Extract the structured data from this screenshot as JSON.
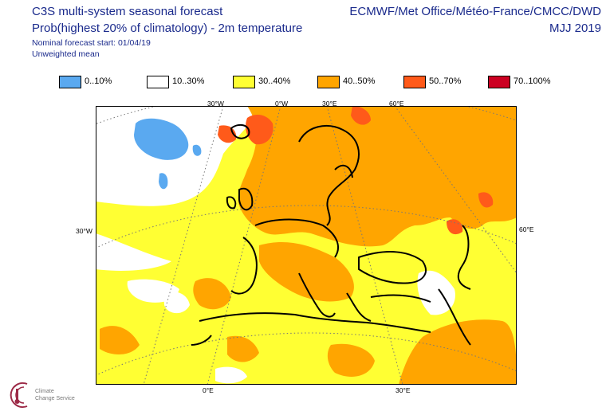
{
  "header": {
    "title_line1": "C3S multi-system seasonal forecast",
    "title_line2": "Prob(highest 20% of climatology) - 2m temperature",
    "subtitle_line1": "Nominal forecast start: 01/04/19",
    "subtitle_line2": "Unweighted mean",
    "centres": "ECMWF/Met Office/Météo-France/CMCC/DWD",
    "period": "MJJ 2019"
  },
  "legend": [
    {
      "label": "0..10%",
      "color": "#5aa9f0"
    },
    {
      "label": "10..30%",
      "color": "#ffffff"
    },
    {
      "label": "30..40%",
      "color": "#ffff33"
    },
    {
      "label": "40..50%",
      "color": "#ffa500"
    },
    {
      "label": "50..70%",
      "color": "#ff5a1a"
    },
    {
      "label": "70..100%",
      "color": "#cc0022"
    }
  ],
  "axes": {
    "top_30w": "30°W",
    "top_0w": "0°W",
    "top_30e": "30°E",
    "top_60e": "60°E",
    "left_30w": "30°W",
    "right_60e": "60°E",
    "bottom_0e": "0°E",
    "bottom_30e": "30°E"
  },
  "logo": {
    "name_line1": "Climate",
    "name_line2": "Change Service"
  }
}
